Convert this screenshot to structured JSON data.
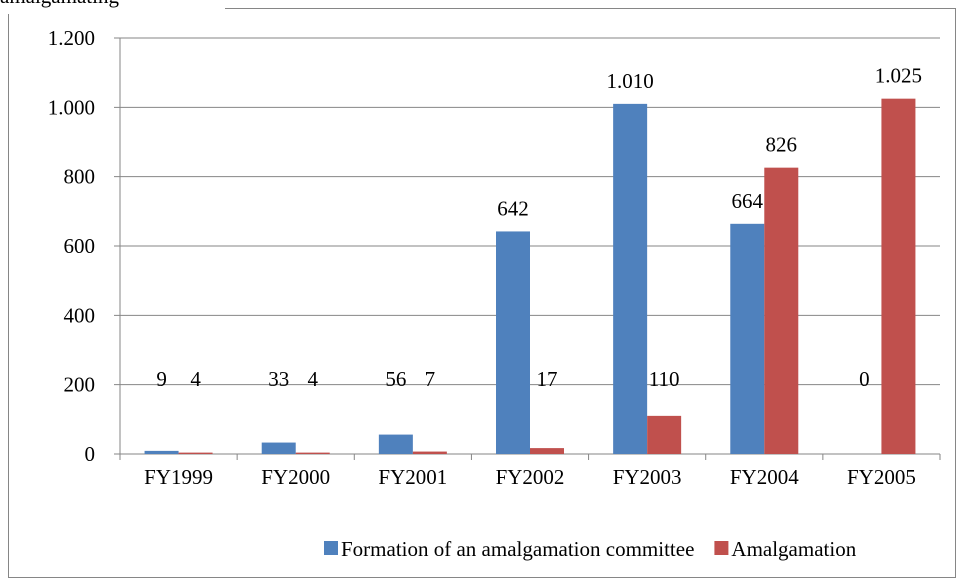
{
  "chart_data": {
    "type": "bar",
    "title": "amalgamating",
    "categories": [
      "FY1999",
      "FY2000",
      "FY2001",
      "FY2002",
      "FY2003",
      "FY2004",
      "FY2005"
    ],
    "series": [
      {
        "name": "Formation of an amalgamation committee",
        "color": "#4f81bd",
        "values": [
          9,
          33,
          56,
          642,
          1010,
          664,
          0
        ],
        "value_labels": [
          "9",
          "33",
          "56",
          "642",
          "1.010",
          "664",
          "0"
        ]
      },
      {
        "name": "Amalgamation",
        "color": "#c0504d",
        "values": [
          4,
          4,
          7,
          17,
          110,
          826,
          1025
        ],
        "value_labels": [
          "4",
          "4",
          "7",
          "17",
          "110",
          "826",
          "1.025"
        ]
      }
    ],
    "ylim": [
      0,
      1200
    ],
    "yticks": [
      0,
      200,
      400,
      600,
      800,
      {
        "value": 1000,
        "label": "1.000"
      },
      {
        "value": 1200,
        "label": "1.200"
      }
    ],
    "grid": true,
    "legend": "bottom"
  }
}
